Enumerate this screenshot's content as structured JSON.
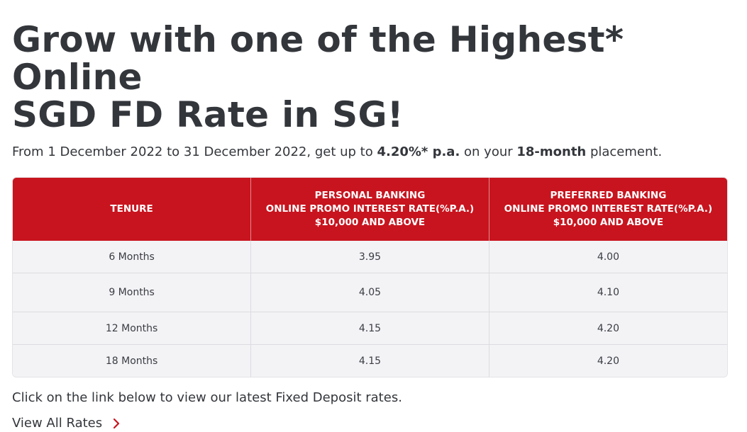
{
  "heading": {
    "line1": "Grow with one of the Highest* Online",
    "line2": "SGD FD Rate in SG!"
  },
  "intro": {
    "prefix": "From 1 December 2022 to 31 December 2022, get up to ",
    "rate": "4.20%* p.a.",
    "middle": " on your ",
    "tenure": "18-month",
    "suffix": " placement."
  },
  "table": {
    "headers": [
      {
        "lines": [
          "TENURE"
        ]
      },
      {
        "lines": [
          "PERSONAL BANKING",
          "ONLINE PROMO INTEREST RATE(%P.A.)",
          "$10,000 AND ABOVE"
        ]
      },
      {
        "lines": [
          "PREFERRED BANKING",
          "ONLINE PROMO INTEREST RATE(%P.A.)",
          "$10,000 AND ABOVE"
        ]
      }
    ],
    "rows": [
      [
        "6 Months",
        "3.95",
        "4.00"
      ],
      [
        "9 Months",
        "4.05",
        "4.10"
      ],
      [
        "12 Months",
        "4.15",
        "4.20"
      ],
      [
        "18 Months",
        "4.15",
        "4.20"
      ]
    ]
  },
  "note": "Click on the link below to view our latest Fixed Deposit rates.",
  "link": {
    "label": "View All Rates",
    "icon": "chevron-right-icon"
  },
  "colors": {
    "header_red": "#c8141e",
    "row_bg": "#f3f3f6",
    "text": "#33363b"
  }
}
